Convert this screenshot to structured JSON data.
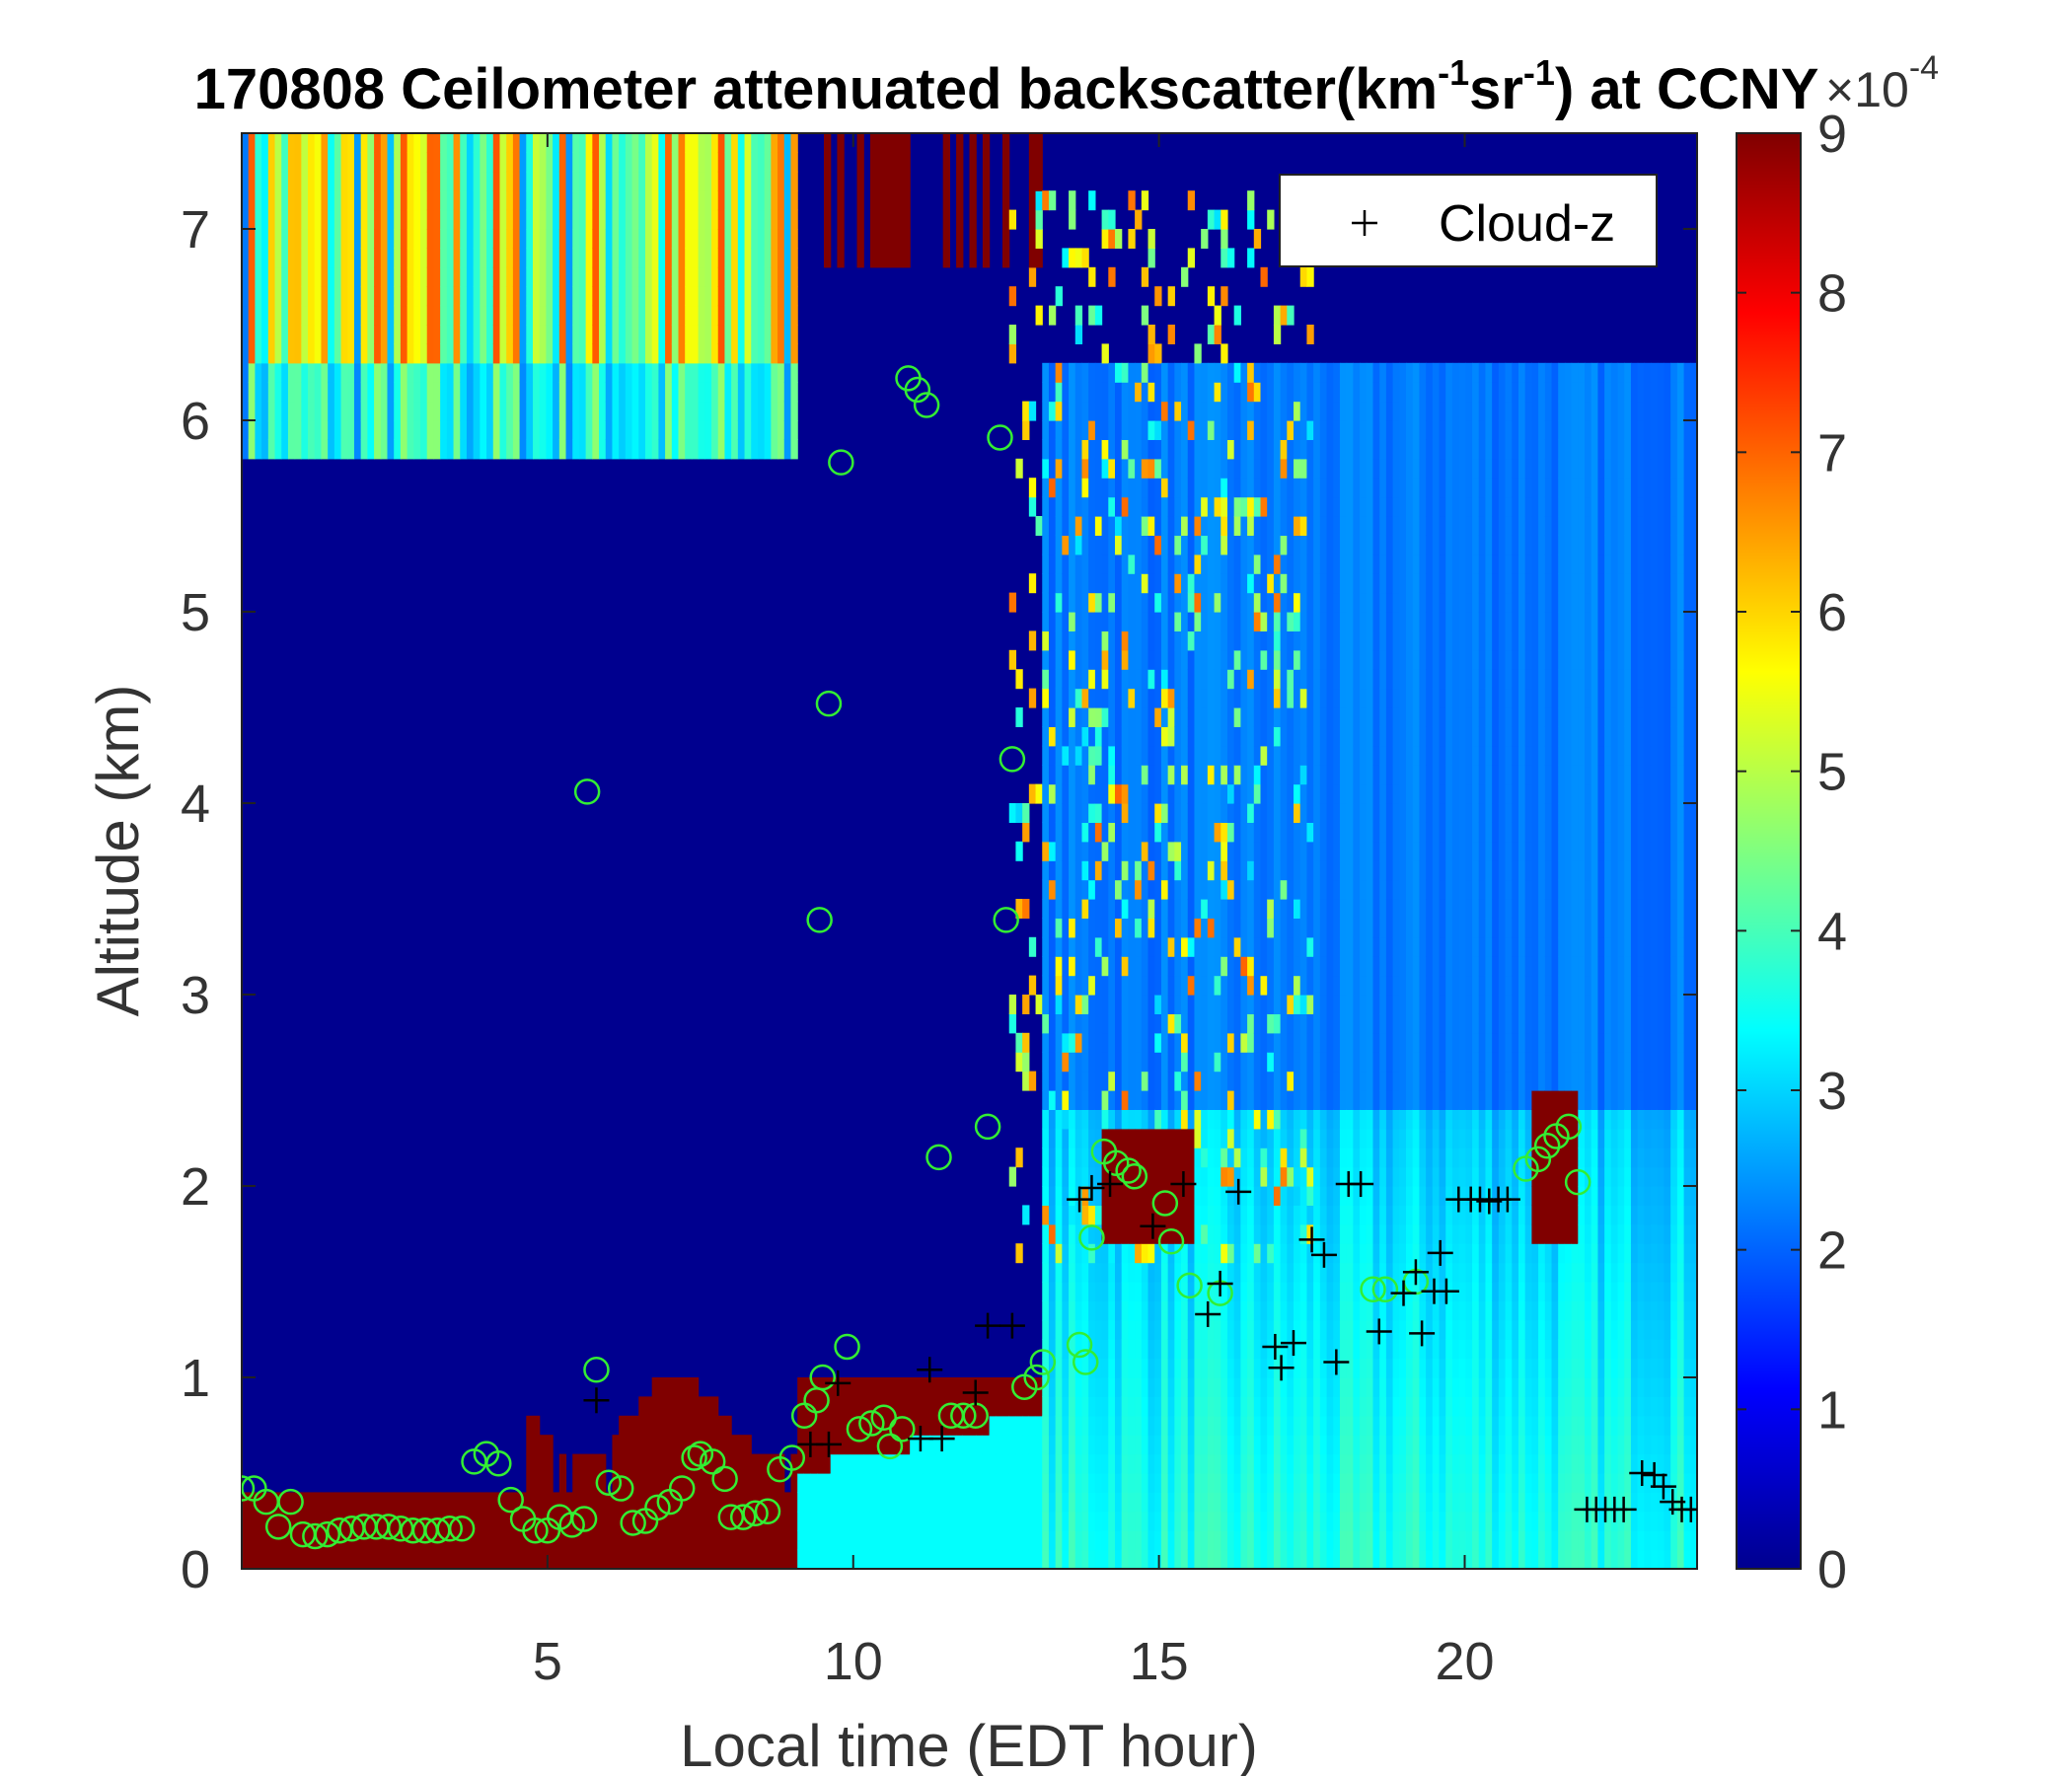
{
  "chart_data": {
    "type": "heatmap",
    "title_parts": [
      "170808 Ceilometer attenuated backscatter(km",
      "-1",
      "sr",
      "-1",
      ") at CCNY"
    ],
    "xlabel": "Local time (EDT hour)",
    "ylabel": "Altitude (km)",
    "xlim": [
      0,
      23.8
    ],
    "ylim": [
      0,
      7.5
    ],
    "xticks": [
      5,
      10,
      15,
      20
    ],
    "yticks": [
      0,
      1,
      2,
      3,
      4,
      5,
      6,
      7
    ],
    "colorbar": {
      "colormap": "jet",
      "range": [
        0,
        9
      ],
      "ticks": [
        0,
        1,
        2,
        3,
        4,
        5,
        6,
        7,
        8,
        9
      ],
      "exponent_label": "×10",
      "exponent_power": "-4"
    },
    "legend": {
      "entries": [
        {
          "marker": "+",
          "label": "Cloud-z"
        }
      ],
      "placement": "top-right"
    },
    "series": [
      {
        "marker": "circle",
        "color": "#33ee33",
        "points": [
          [
            0,
            0.42
          ],
          [
            0.2,
            0.42
          ],
          [
            0.4,
            0.35
          ],
          [
            0.6,
            0.22
          ],
          [
            0.8,
            0.35
          ],
          [
            1.0,
            0.18
          ],
          [
            1.2,
            0.17
          ],
          [
            1.4,
            0.18
          ],
          [
            1.6,
            0.2
          ],
          [
            1.8,
            0.21
          ],
          [
            2.0,
            0.22
          ],
          [
            2.2,
            0.22
          ],
          [
            2.4,
            0.22
          ],
          [
            2.6,
            0.21
          ],
          [
            2.8,
            0.2
          ],
          [
            3.0,
            0.2
          ],
          [
            3.2,
            0.2
          ],
          [
            3.4,
            0.21
          ],
          [
            3.6,
            0.21
          ],
          [
            3.8,
            0.56
          ],
          [
            4.0,
            0.6
          ],
          [
            4.2,
            0.55
          ],
          [
            4.4,
            0.36
          ],
          [
            4.6,
            0.26
          ],
          [
            4.8,
            0.2
          ],
          [
            5.0,
            0.2
          ],
          [
            5.2,
            0.27
          ],
          [
            5.4,
            0.23
          ],
          [
            5.6,
            0.26
          ],
          [
            5.65,
            4.06
          ],
          [
            5.8,
            1.04
          ],
          [
            6.0,
            0.45
          ],
          [
            6.2,
            0.42
          ],
          [
            6.4,
            0.24
          ],
          [
            6.6,
            0.25
          ],
          [
            6.8,
            0.32
          ],
          [
            7.0,
            0.35
          ],
          [
            7.2,
            0.42
          ],
          [
            7.4,
            0.58
          ],
          [
            7.5,
            0.6
          ],
          [
            7.7,
            0.56
          ],
          [
            7.9,
            0.47
          ],
          [
            8.0,
            0.27
          ],
          [
            8.2,
            0.27
          ],
          [
            8.4,
            0.29
          ],
          [
            8.6,
            0.3
          ],
          [
            8.8,
            0.52
          ],
          [
            9.0,
            0.58
          ],
          [
            9.2,
            0.8
          ],
          [
            9.4,
            0.88
          ],
          [
            9.5,
            1.0
          ],
          [
            9.45,
            3.39
          ],
          [
            9.6,
            4.52
          ],
          [
            9.8,
            5.78
          ],
          [
            9.9,
            1.16
          ],
          [
            10.1,
            0.73
          ],
          [
            10.3,
            0.76
          ],
          [
            10.5,
            0.79
          ],
          [
            10.6,
            0.64
          ],
          [
            10.8,
            0.73
          ],
          [
            10.9,
            6.22
          ],
          [
            11.05,
            6.16
          ],
          [
            11.2,
            6.08
          ],
          [
            11.4,
            2.15
          ],
          [
            11.6,
            0.8
          ],
          [
            11.8,
            0.8
          ],
          [
            12.0,
            0.8
          ],
          [
            12.2,
            2.31
          ],
          [
            12.4,
            5.91
          ],
          [
            12.5,
            3.39
          ],
          [
            12.6,
            4.23
          ],
          [
            12.8,
            0.95
          ],
          [
            13.0,
            1.0
          ],
          [
            13.1,
            1.08
          ],
          [
            13.7,
            1.17
          ],
          [
            13.8,
            1.08
          ],
          [
            13.9,
            1.73
          ],
          [
            14.1,
            2.18
          ],
          [
            14.3,
            2.12
          ],
          [
            14.5,
            2.08
          ],
          [
            14.6,
            2.05
          ],
          [
            15.1,
            1.91
          ],
          [
            15.2,
            1.71
          ],
          [
            15.5,
            1.48
          ],
          [
            16.0,
            1.44
          ],
          [
            18.5,
            1.46
          ],
          [
            18.7,
            1.46
          ],
          [
            19.2,
            1.5
          ],
          [
            21.0,
            2.09
          ],
          [
            21.2,
            2.14
          ],
          [
            21.35,
            2.21
          ],
          [
            21.5,
            2.26
          ],
          [
            21.7,
            2.31
          ],
          [
            21.85,
            2.02
          ]
        ]
      },
      {
        "name": "Cloud-z",
        "marker": "plus",
        "color": "#000000",
        "points": [
          [
            5.8,
            0.88
          ],
          [
            9.3,
            0.65
          ],
          [
            9.6,
            0.65
          ],
          [
            9.75,
            0.97
          ],
          [
            11.1,
            0.68
          ],
          [
            11.25,
            1.04
          ],
          [
            11.45,
            0.68
          ],
          [
            12.0,
            0.92
          ],
          [
            12.2,
            1.27
          ],
          [
            12.6,
            1.27
          ],
          [
            13.7,
            1.93
          ],
          [
            13.9,
            1.99
          ],
          [
            14.2,
            2.01
          ],
          [
            14.9,
            1.79
          ],
          [
            15.4,
            2.01
          ],
          [
            15.8,
            1.33
          ],
          [
            16.0,
            1.49
          ],
          [
            16.3,
            1.97
          ],
          [
            16.9,
            1.16
          ],
          [
            17.0,
            1.05
          ],
          [
            17.2,
            1.18
          ],
          [
            17.5,
            1.72
          ],
          [
            17.7,
            1.64
          ],
          [
            17.9,
            1.08
          ],
          [
            18.1,
            2.01
          ],
          [
            18.3,
            2.01
          ],
          [
            18.6,
            1.24
          ],
          [
            19.0,
            1.44
          ],
          [
            19.2,
            1.55
          ],
          [
            19.3,
            1.23
          ],
          [
            19.5,
            1.45
          ],
          [
            19.6,
            1.65
          ],
          [
            19.7,
            1.45
          ],
          [
            19.9,
            1.93
          ],
          [
            20.1,
            1.93
          ],
          [
            20.25,
            1.93
          ],
          [
            20.4,
            1.92
          ],
          [
            20.55,
            1.93
          ],
          [
            20.7,
            1.93
          ],
          [
            22.0,
            0.31
          ],
          [
            22.15,
            0.31
          ],
          [
            22.3,
            0.31
          ],
          [
            22.45,
            0.31
          ],
          [
            22.6,
            0.31
          ],
          [
            22.9,
            0.5
          ],
          [
            23.1,
            0.49
          ],
          [
            23.25,
            0.43
          ],
          [
            23.4,
            0.35
          ],
          [
            23.55,
            0.31
          ],
          [
            23.7,
            0.31
          ]
        ]
      }
    ]
  }
}
